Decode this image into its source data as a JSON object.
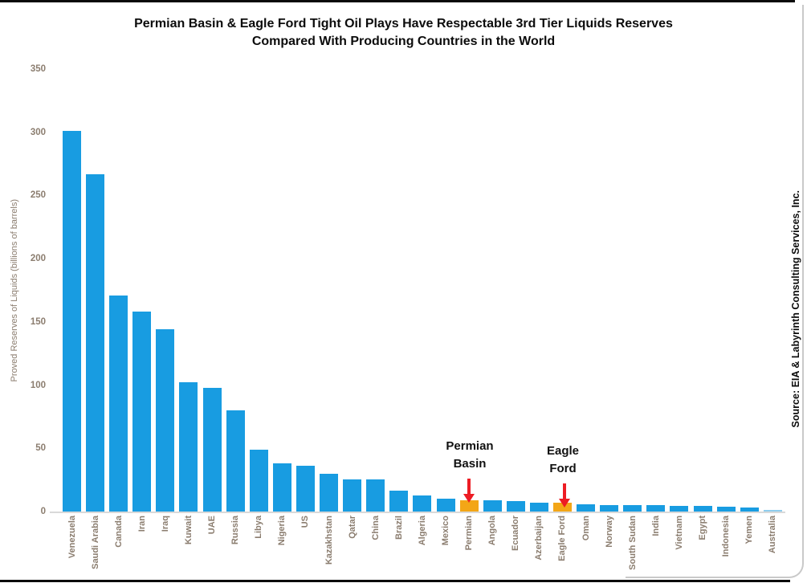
{
  "title": {
    "line1": "Permian Basin & Eagle Ford Tight Oil Plays Have Respectable 3rd Tier Liquids Reserves",
    "line2": "Compared With Producing Countries in the World"
  },
  "source": "Source: EIA & Labyrinth Consulting Services, Inc.",
  "annotations": {
    "permian": {
      "line1": "Permian",
      "line2": "Basin"
    },
    "eagle": {
      "line1": "Eagle",
      "line2": "Ford"
    }
  },
  "chart_data": {
    "type": "bar",
    "title": "Permian Basin & Eagle Ford Tight Oil Plays Have Respectable 3rd Tier Liquids Reserves Compared With Producing Countries in the World",
    "xlabel": "",
    "ylabel": "Proved Reserves of Liquids (billions of barrels)",
    "ylim": [
      0,
      350
    ],
    "ytick_interval": 50,
    "yticks": [
      0,
      50,
      100,
      150,
      200,
      250,
      300,
      350
    ],
    "grid": false,
    "legend": false,
    "categories": [
      "Venezuela",
      "Saudi Arabia",
      "Canada",
      "Iran",
      "Iraq",
      "Kuwait",
      "UAE",
      "Russia",
      "Libya",
      "Nigeria",
      "US",
      "Kazakhstan",
      "Qatar",
      "China",
      "Brazil",
      "Algeria",
      "Mexico",
      "Permian",
      "Angola",
      "Ecuador",
      "Azerbaijan",
      "Eagle Ford",
      "Oman",
      "Norway",
      "South Sudan",
      "India",
      "Vietnam",
      "Egypt",
      "Indonesia",
      "Yemen",
      "Australia"
    ],
    "values": [
      301,
      267,
      171,
      158,
      144,
      102,
      98,
      80,
      49,
      38,
      36,
      30,
      25.5,
      25.5,
      16.5,
      12.5,
      10,
      9,
      9,
      8.5,
      7.3,
      7,
      5.5,
      5.2,
      5,
      4.8,
      4.5,
      4.2,
      3.8,
      3.2,
      1.5
    ],
    "highlighted_categories": [
      "Permian",
      "Eagle Ford"
    ],
    "light_categories": [
      "Australia"
    ],
    "annotations": [
      {
        "text": "Permian Basin",
        "target": "Permian"
      },
      {
        "text": "Eagle Ford",
        "target": "Eagle Ford"
      }
    ],
    "colors": {
      "bar": "#189CE1",
      "bar_highlight": "#F3A617",
      "bar_light": "#8FCDEE",
      "axis_text": "#8B7D6F",
      "axis_line": "#D9D9D9",
      "arrow": "#ED1C24",
      "title_text": "#0C0C0C"
    }
  }
}
